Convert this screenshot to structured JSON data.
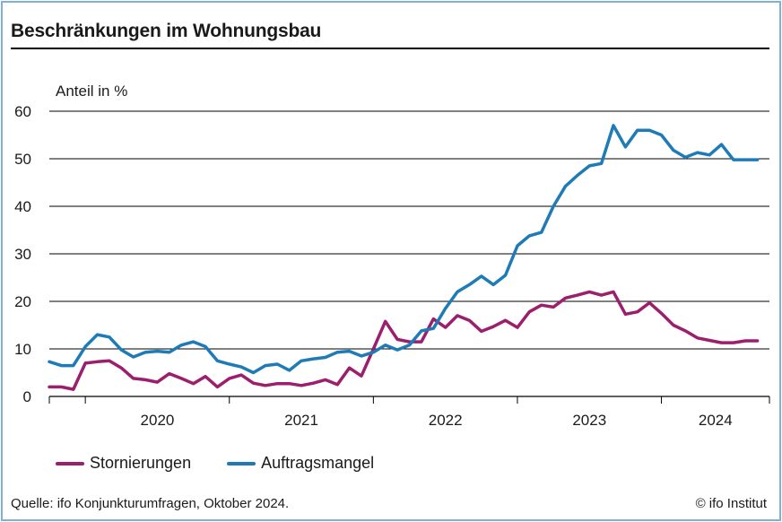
{
  "header": {
    "title": "Beschränkungen im Wohnungsbau"
  },
  "footer": {
    "source": "Quelle: ifo Konjunkturumfragen, Oktober 2024.",
    "credit": "© ifo Institut"
  },
  "colors": {
    "stornierungen": "#9c1f6e",
    "auftragsmangel": "#1f7bb6"
  },
  "chart_data": {
    "type": "line",
    "ylabel": "Anteil in %",
    "ylim": [
      0,
      60
    ],
    "yticks": [
      0,
      10,
      20,
      30,
      40,
      50,
      60
    ],
    "grid": true,
    "legend_position": "bottom-left",
    "x_start": "2019-10",
    "x_end": "2024-10",
    "year_labels": [
      "2020",
      "2021",
      "2022",
      "2023",
      "2024"
    ],
    "x": [
      "2019-10",
      "2019-11",
      "2019-12",
      "2020-01",
      "2020-02",
      "2020-03",
      "2020-04",
      "2020-05",
      "2020-06",
      "2020-07",
      "2020-08",
      "2020-09",
      "2020-10",
      "2020-11",
      "2020-12",
      "2021-01",
      "2021-02",
      "2021-03",
      "2021-04",
      "2021-05",
      "2021-06",
      "2021-07",
      "2021-08",
      "2021-09",
      "2021-10",
      "2021-11",
      "2021-12",
      "2022-01",
      "2022-02",
      "2022-03",
      "2022-04",
      "2022-05",
      "2022-06",
      "2022-07",
      "2022-08",
      "2022-09",
      "2022-10",
      "2022-11",
      "2022-12",
      "2023-01",
      "2023-02",
      "2023-03",
      "2023-04",
      "2023-05",
      "2023-06",
      "2023-07",
      "2023-08",
      "2023-09",
      "2023-10",
      "2023-11",
      "2023-12",
      "2024-01",
      "2024-02",
      "2024-03",
      "2024-04",
      "2024-05",
      "2024-06",
      "2024-07",
      "2024-08",
      "2024-09"
    ],
    "series": [
      {
        "name": "Stornierungen",
        "values": [
          2.0,
          2.0,
          1.5,
          7.0,
          7.3,
          7.5,
          6.0,
          3.8,
          3.5,
          3.0,
          4.8,
          3.8,
          2.7,
          4.2,
          2.0,
          3.8,
          4.5,
          2.8,
          2.3,
          2.7,
          2.7,
          2.3,
          2.8,
          3.5,
          2.5,
          6.0,
          4.3,
          10.0,
          15.8,
          12.0,
          11.5,
          11.5,
          16.3,
          14.5,
          17.0,
          16.0,
          13.7,
          14.7,
          16.0,
          14.5,
          17.8,
          19.2,
          18.8,
          20.7,
          21.3,
          22.0,
          21.3,
          22.0,
          17.3,
          17.8,
          19.7,
          17.5,
          15.0,
          13.8,
          12.3,
          11.8,
          11.3,
          11.3,
          11.7,
          11.7
        ]
      },
      {
        "name": "Auftragsmangel",
        "values": [
          7.3,
          6.5,
          6.5,
          10.5,
          13.0,
          12.5,
          9.8,
          8.3,
          9.3,
          9.5,
          9.3,
          10.8,
          11.5,
          10.5,
          7.5,
          6.8,
          6.2,
          5.0,
          6.5,
          6.8,
          5.5,
          7.5,
          7.9,
          8.2,
          9.3,
          9.5,
          8.5,
          9.3,
          10.8,
          9.8,
          10.8,
          13.8,
          14.3,
          18.5,
          22.0,
          23.5,
          25.3,
          23.5,
          25.5,
          31.7,
          33.8,
          34.5,
          40.0,
          44.2,
          46.5,
          48.5,
          49.0,
          57.0,
          52.5,
          56.0,
          56.0,
          55.0,
          51.8,
          50.3,
          51.3,
          50.8,
          53.0,
          49.8,
          49.8,
          49.8
        ]
      }
    ]
  }
}
